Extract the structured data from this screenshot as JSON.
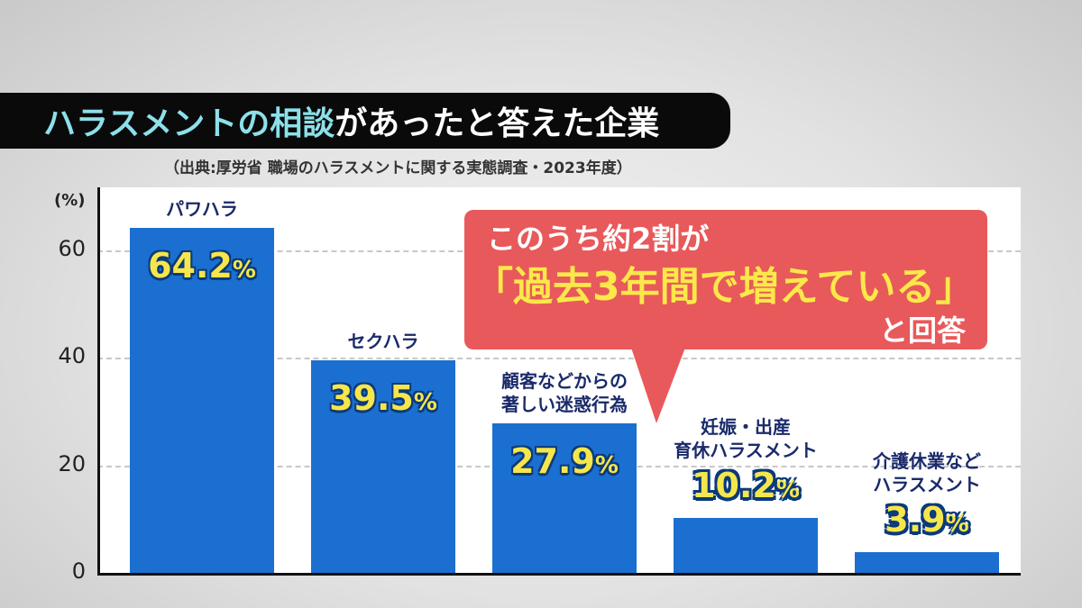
{
  "title": {
    "highlight": "ハラスメントの相談",
    "rest": "があったと答えた企業"
  },
  "source": "（出典:厚労省 職場のハラスメントに関する実態調査・2023年度）",
  "callout": {
    "line1": "このうち約2割が",
    "line2": "「過去3年間で増えている」",
    "line3": "と回答"
  },
  "colors": {
    "bar": "#1b6fd0",
    "value_text": "#f6e64b",
    "callout": "#e8595b",
    "title_highlight": "#8de0ea"
  },
  "chart_data": {
    "type": "bar",
    "yunit": "(%)",
    "ylim": [
      0,
      70
    ],
    "yticks": [
      0,
      20,
      40,
      60
    ],
    "grid": true,
    "categories": [
      "パワハラ",
      "セクハラ",
      "顧客などからの\n著しい迷惑行為",
      "妊娠・出産\n育休ハラスメント",
      "介護休業など\nハラスメント"
    ],
    "values": [
      64.2,
      39.5,
      27.9,
      10.2,
      3.9
    ],
    "value_labels": [
      "64.2",
      "39.5",
      "27.9",
      "10.2",
      "3.9"
    ],
    "value_suffix": "%"
  }
}
